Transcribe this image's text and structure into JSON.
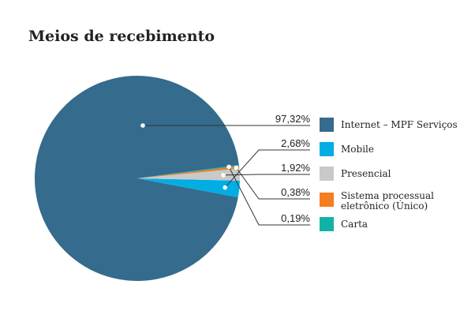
{
  "chart_data": {
    "type": "pie",
    "title": "Meios de recebimento",
    "slices": [
      {
        "label": [
          "Internet – MPF Serviços"
        ],
        "value": 97.32,
        "value_label": "97,32%",
        "color": "#356b8c"
      },
      {
        "label": [
          "Mobile"
        ],
        "value": 2.68,
        "value_label": "2,68%",
        "color": "#00aee4"
      },
      {
        "label": [
          "Presencial"
        ],
        "value": 1.92,
        "value_label": "1,92%",
        "color": "#c9c9c9"
      },
      {
        "label": [
          "Sistema processual",
          "eletrônico (Único)"
        ],
        "value": 0.38,
        "value_label": "0,38%",
        "color": "#f47e20"
      },
      {
        "label": [
          "Carta"
        ],
        "value": 0.19,
        "value_label": "0,19%",
        "color": "#12b3a6"
      }
    ],
    "legend_position": "right"
  }
}
